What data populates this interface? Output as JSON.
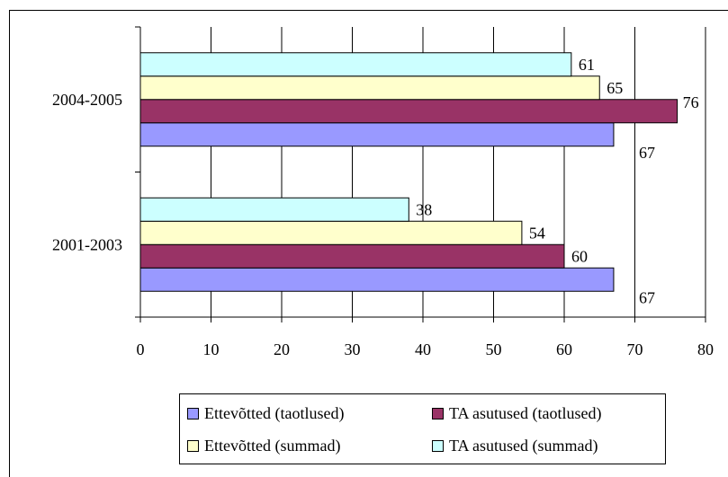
{
  "chart_data": {
    "type": "bar",
    "orientation": "horizontal",
    "categories": [
      "2001-2003",
      "2004-2005"
    ],
    "series": [
      {
        "name": "Ettevõtted (taotlused)",
        "color": "#9999ff",
        "values": [
          67,
          67
        ]
      },
      {
        "name": "TA asutused (taotlused)",
        "color": "#993366",
        "values": [
          60,
          76
        ]
      },
      {
        "name": "Ettevõtted (summad)",
        "color": "#ffffcc",
        "values": [
          54,
          65
        ]
      },
      {
        "name": "TA asutused (summad)",
        "color": "#ccffff",
        "values": [
          38,
          61
        ]
      }
    ],
    "data_labels": [
      [
        "67",
        "67"
      ],
      [
        "60",
        "76"
      ],
      [
        "54",
        "65"
      ],
      [
        "38",
        "61"
      ]
    ],
    "xlim": [
      0,
      80
    ],
    "x_ticks": [
      "0",
      "10",
      "20",
      "30",
      "40",
      "50",
      "60",
      "70",
      "80"
    ],
    "grid": true,
    "legend_position": "bottom"
  }
}
